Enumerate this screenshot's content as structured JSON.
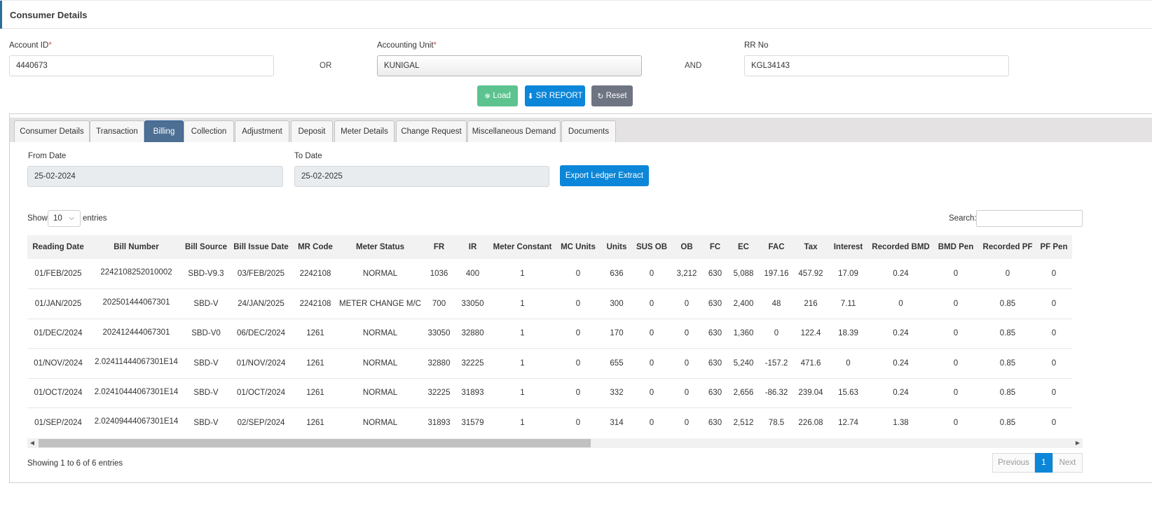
{
  "header": {
    "title": "Consumer Details"
  },
  "search_form": {
    "account_id_label": "Account ID",
    "account_id_value": "4440673",
    "or_label": "OR",
    "accounting_unit_label": "Accounting Unit",
    "accounting_unit_value": "KUNIGAL",
    "and_label": "AND",
    "rr_no_label": "RR No",
    "rr_no_value": "KGL34143",
    "required_mark": "*"
  },
  "actions": {
    "load_label": "Load",
    "sr_report_label": "SR REPORT",
    "reset_label": "Reset"
  },
  "tabs": [
    {
      "label": "Consumer Details"
    },
    {
      "label": "Transaction"
    },
    {
      "label": "Billing",
      "active": true
    },
    {
      "label": "Collection"
    },
    {
      "label": "Adjustment"
    },
    {
      "label": "Deposit"
    },
    {
      "label": "Meter Details"
    },
    {
      "label": "Change Request"
    },
    {
      "label": "Miscellaneous Demand"
    },
    {
      "label": "Documents"
    }
  ],
  "billing": {
    "from_date_label": "From Date",
    "from_date_value": "25-02-2024",
    "to_date_label": "To Date",
    "to_date_value": "25-02-2025",
    "export_label": "Export Ledger Extract",
    "show_label": "Show",
    "entries_value": "10",
    "entries_label": "entries",
    "search_label": "Search:",
    "columns": [
      "Reading Date",
      "Bill Number",
      "Bill Source",
      "Bill Issue Date",
      "MR Code",
      "Meter Status",
      "FR",
      "IR",
      "Meter Constant",
      "MC Units",
      "Units",
      "SUS OB",
      "OB",
      "FC",
      "EC",
      "FAC",
      "Tax",
      "Interest",
      "Recorded BMD",
      "BMD Pen",
      "Recorded PF",
      "PF Pen"
    ],
    "rows": [
      [
        "01/FEB/2025",
        "2242108252010002",
        "SBD-V9.3",
        "03/FEB/2025",
        "2242108",
        "NORMAL",
        "1036",
        "400",
        "1",
        "0",
        "636",
        "0",
        "3,212",
        "630",
        "5,088",
        "197.16",
        "457.92",
        "17.09",
        "0.24",
        "0",
        "0",
        "0"
      ],
      [
        "01/JAN/2025",
        "202501444067301",
        "SBD-V",
        "24/JAN/2025",
        "2242108",
        "METER CHANGE M/C",
        "700",
        "33050",
        "1",
        "0",
        "300",
        "0",
        "0",
        "630",
        "2,400",
        "48",
        "216",
        "7.11",
        "0",
        "0",
        "0.85",
        "0"
      ],
      [
        "01/DEC/2024",
        "202412444067301",
        "SBD-V0",
        "06/DEC/2024",
        "1261",
        "NORMAL",
        "33050",
        "32880",
        "1",
        "0",
        "170",
        "0",
        "0",
        "630",
        "1,360",
        "0",
        "122.4",
        "18.39",
        "0.24",
        "0",
        "0.85",
        "0"
      ],
      [
        "01/NOV/2024",
        "2.02411444067301E14",
        "SBD-V",
        "01/NOV/2024",
        "1261",
        "NORMAL",
        "32880",
        "32225",
        "1",
        "0",
        "655",
        "0",
        "0",
        "630",
        "5,240",
        "-157.2",
        "471.6",
        "0",
        "0.24",
        "0",
        "0.85",
        "0"
      ],
      [
        "01/OCT/2024",
        "2.02410444067301E14",
        "SBD-V",
        "01/OCT/2024",
        "1261",
        "NORMAL",
        "32225",
        "31893",
        "1",
        "0",
        "332",
        "0",
        "0",
        "630",
        "2,656",
        "-86.32",
        "239.04",
        "15.63",
        "0.24",
        "0",
        "0.85",
        "0"
      ],
      [
        "01/SEP/2024",
        "2.02409444067301E14",
        "SBD-V",
        "02/SEP/2024",
        "1261",
        "NORMAL",
        "31893",
        "31579",
        "1",
        "0",
        "314",
        "0",
        "0",
        "630",
        "2,512",
        "78.5",
        "226.08",
        "12.74",
        "1.38",
        "0",
        "0.85",
        "0"
      ]
    ],
    "showing_text": "Showing 1 to 6 of 6 entries",
    "pagination": {
      "previous": "Previous",
      "current": "1",
      "next": "Next"
    }
  },
  "colors": {
    "primary": "#0b86d8",
    "success": "#5cc38f",
    "secondary": "#6f7482",
    "active_tab": "#4d6f94"
  }
}
